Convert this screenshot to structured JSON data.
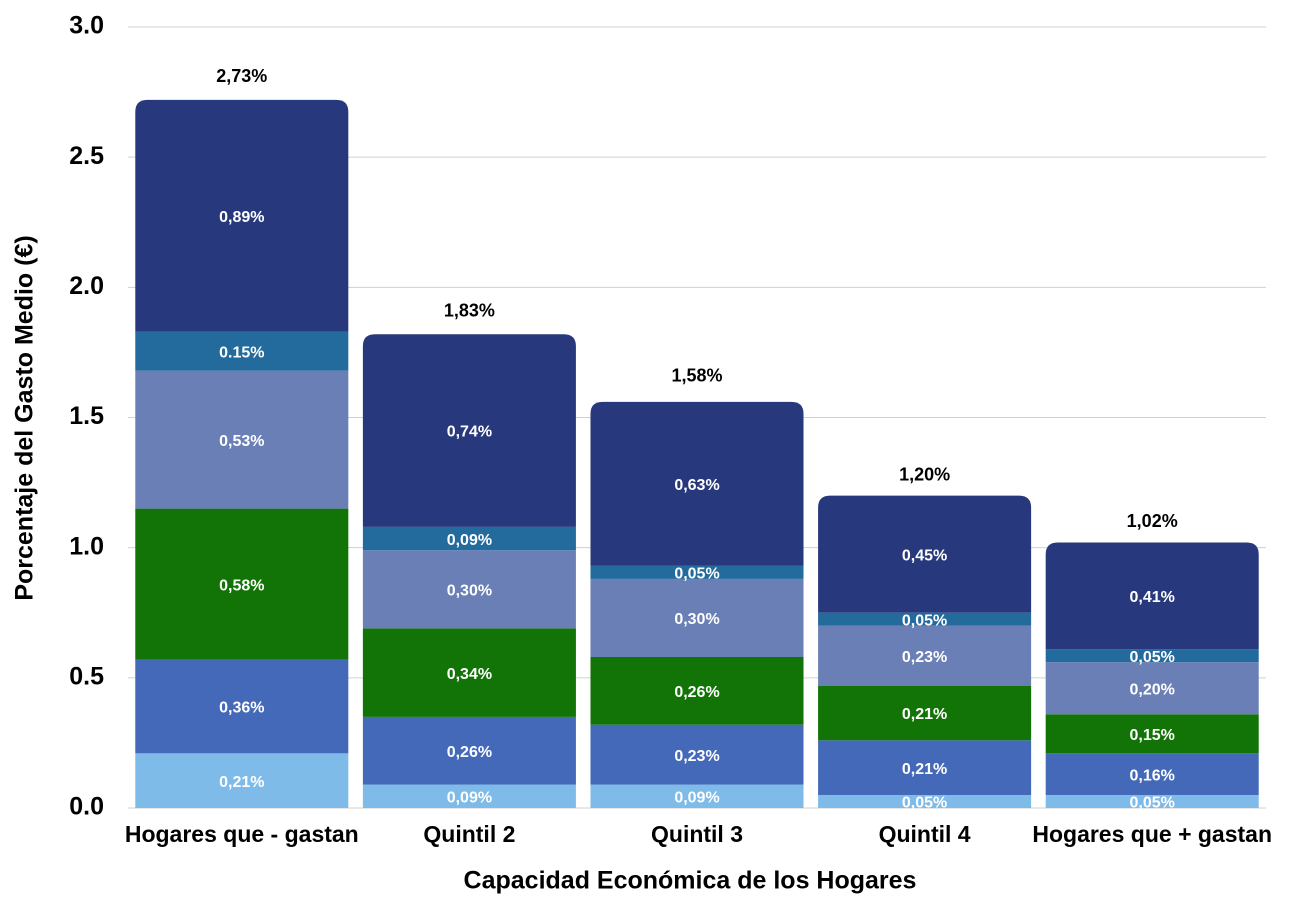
{
  "chart_data": {
    "type": "stacked_bar",
    "x_label": "Capacidad Económica de los Hogares",
    "y_label": "Porcentaje del Gasto Medio (€)",
    "categories": [
      "Hogares que - gastan",
      "Quintil 2",
      "Quintil 3",
      "Quintil 4",
      "Hogares que + gastan"
    ],
    "series": [
      {
        "color": "#7fbbe8",
        "values": [
          0.21,
          0.09,
          0.09,
          0.05,
          0.05
        ],
        "value_labels": [
          "0,21%",
          "0,09%",
          "0,09%",
          "0,05%",
          "0,05%"
        ]
      },
      {
        "color": "#4469b9",
        "values": [
          0.36,
          0.26,
          0.23,
          0.21,
          0.16
        ],
        "value_labels": [
          "0,36%",
          "0,26%",
          "0,23%",
          "0,21%",
          "0,16%"
        ]
      },
      {
        "color": "#127306",
        "values": [
          0.58,
          0.34,
          0.26,
          0.21,
          0.15
        ],
        "value_labels": [
          "0,58%",
          "0,34%",
          "0,26%",
          "0,21%",
          "0,15%"
        ]
      },
      {
        "color": "#6a7fb5",
        "values": [
          0.53,
          0.3,
          0.3,
          0.23,
          0.2
        ],
        "value_labels": [
          "0,53%",
          "0,30%",
          "0,30%",
          "0,23%",
          "0,20%"
        ]
      },
      {
        "color": "#236a9d",
        "values": [
          0.15,
          0.09,
          0.05,
          0.05,
          0.05
        ],
        "value_labels": [
          "0.15%",
          "0,09%",
          "0,05%",
          "0,05%",
          "0,05%"
        ]
      },
      {
        "color": "#27397c",
        "values": [
          0.89,
          0.74,
          0.63,
          0.45,
          0.41
        ],
        "value_labels": [
          "0,89%",
          "0,74%",
          "0,63%",
          "0,45%",
          "0,41%"
        ]
      }
    ],
    "totals": [
      2.73,
      1.83,
      1.58,
      1.2,
      1.02
    ],
    "total_labels": [
      "2,73%",
      "1,83%",
      "1,58%",
      "1,20%",
      "1,02%"
    ],
    "ylim": [
      0,
      3.0
    ],
    "yticks": [
      {
        "value": 0,
        "label": "0.0"
      },
      0.5,
      {
        "value": 1,
        "label": "1.0"
      },
      1.5,
      {
        "value": 2,
        "label": "2.0"
      },
      2.5,
      {
        "value": 3,
        "label": "3.0"
      }
    ],
    "grid": true
  }
}
